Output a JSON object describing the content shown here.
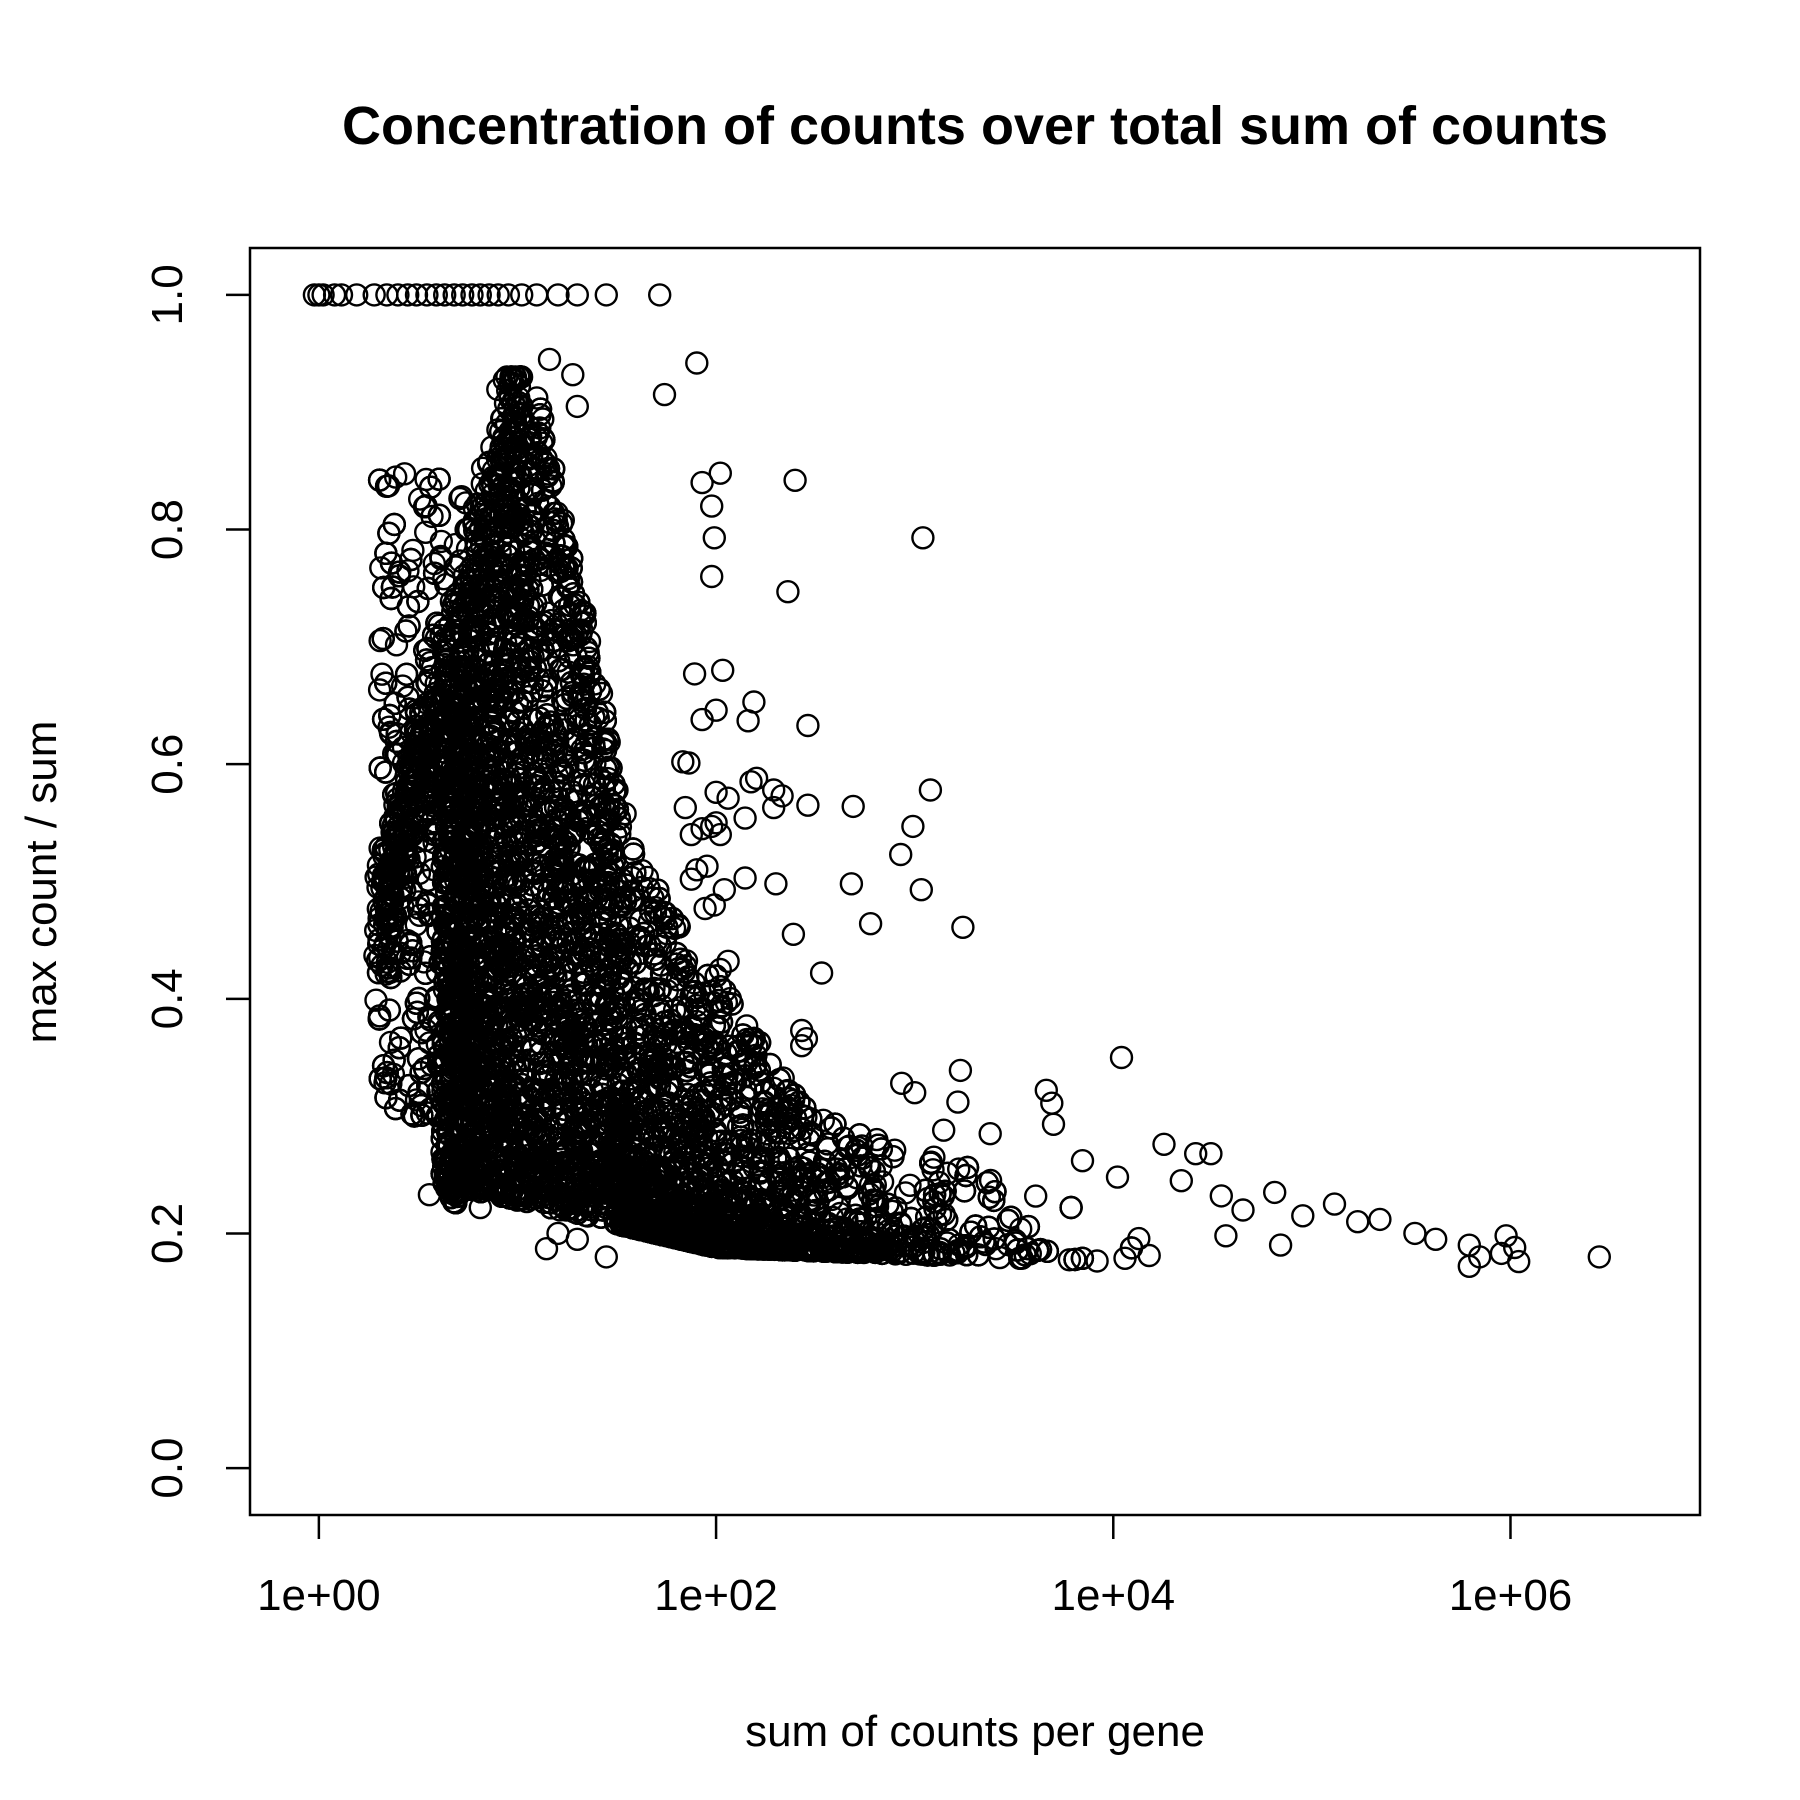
{
  "chart_data": {
    "type": "scatter",
    "title": "Concentration of counts over total sum of counts",
    "xlabel": "sum of counts per gene",
    "ylabel": "max count / sum",
    "x_scale": "log",
    "xlim": [
      0.45,
      9000000
    ],
    "ylim": [
      -0.04,
      1.04
    ],
    "x_ticks": [
      1,
      100,
      10000,
      1000000
    ],
    "x_tick_labels": [
      "1e+00",
      "1e+02",
      "1e+04",
      "1e+06"
    ],
    "y_ticks": [
      0,
      0.2,
      0.4,
      0.6,
      0.8,
      1.0
    ],
    "y_tick_labels": [
      "0.0",
      "0.2",
      "0.4",
      "0.6",
      "0.8",
      "1.0"
    ],
    "grid": false,
    "legend": "none",
    "marker": "open-circle",
    "color": "#000000",
    "points": [
      [
        0.95,
        1.0
      ],
      [
        1.0,
        1.0
      ],
      [
        1.05,
        1.0
      ],
      [
        1.2,
        1.0
      ],
      [
        1.3,
        1.0
      ],
      [
        1.55,
        1.0
      ],
      [
        1.9,
        1.0
      ],
      [
        2.2,
        1.0
      ],
      [
        2.5,
        1.0
      ],
      [
        2.8,
        1.0
      ],
      [
        3.1,
        1.0
      ],
      [
        3.5,
        1.0
      ],
      [
        3.9,
        1.0
      ],
      [
        4.3,
        1.0
      ],
      [
        4.8,
        1.0
      ],
      [
        5.3,
        1.0
      ],
      [
        5.9,
        1.0
      ],
      [
        6.5,
        1.0
      ],
      [
        7.2,
        1.0
      ],
      [
        8.0,
        1.0
      ],
      [
        9.0,
        1.0
      ],
      [
        10.5,
        1.0
      ],
      [
        12.5,
        1.0
      ],
      [
        16.0,
        1.0
      ],
      [
        20.0,
        1.0
      ],
      [
        28.0,
        1.0
      ],
      [
        52.0,
        1.0
      ],
      [
        14.5,
        0.945
      ],
      [
        19.0,
        0.932
      ],
      [
        80.0,
        0.942
      ],
      [
        55.0,
        0.915
      ],
      [
        20.0,
        0.905
      ],
      [
        85.0,
        0.84
      ],
      [
        105.0,
        0.848
      ],
      [
        250.0,
        0.842
      ],
      [
        95.0,
        0.82
      ],
      [
        98.0,
        0.793
      ],
      [
        95.0,
        0.76
      ],
      [
        1100.0,
        0.793
      ],
      [
        230.0,
        0.747
      ],
      [
        78.0,
        0.677
      ],
      [
        108.0,
        0.68
      ],
      [
        100.0,
        0.646
      ],
      [
        155.0,
        0.653
      ],
      [
        145.0,
        0.637
      ],
      [
        85.0,
        0.638
      ],
      [
        290.0,
        0.633
      ],
      [
        68.0,
        0.602
      ],
      [
        73.0,
        0.601
      ],
      [
        100.0,
        0.576
      ],
      [
        115.0,
        0.571
      ],
      [
        150.0,
        0.585
      ],
      [
        160.0,
        0.588
      ],
      [
        195.0,
        0.578
      ],
      [
        215.0,
        0.573
      ],
      [
        195.0,
        0.563
      ],
      [
        290.0,
        0.565
      ],
      [
        490.0,
        0.564
      ],
      [
        70.0,
        0.563
      ],
      [
        140.0,
        0.554
      ],
      [
        100.0,
        0.55
      ],
      [
        95.0,
        0.547
      ],
      [
        85.0,
        0.545
      ],
      [
        75.0,
        0.54
      ],
      [
        105.0,
        0.54
      ],
      [
        980.0,
        0.547
      ],
      [
        1200.0,
        0.578
      ],
      [
        850.0,
        0.523
      ],
      [
        80.0,
        0.51
      ],
      [
        90.0,
        0.513
      ],
      [
        75.0,
        0.502
      ],
      [
        140.0,
        0.503
      ],
      [
        200.0,
        0.498
      ],
      [
        480.0,
        0.498
      ],
      [
        1080.0,
        0.493
      ],
      [
        110.0,
        0.493
      ],
      [
        88.0,
        0.477
      ],
      [
        98.0,
        0.48
      ],
      [
        600.0,
        0.464
      ],
      [
        1750.0,
        0.461
      ],
      [
        245.0,
        0.455
      ],
      [
        340.0,
        0.422
      ],
      [
        115.0,
        0.432
      ],
      [
        105.0,
        0.425
      ],
      [
        270.0,
        0.373
      ],
      [
        270.0,
        0.36
      ],
      [
        285.0,
        0.366
      ],
      [
        4600.0,
        0.322
      ],
      [
        4900.0,
        0.311
      ],
      [
        1700.0,
        0.339
      ],
      [
        1650.0,
        0.312
      ],
      [
        860.0,
        0.328
      ],
      [
        1000.0,
        0.32
      ],
      [
        5000.0,
        0.293
      ],
      [
        11000.0,
        0.35
      ],
      [
        2400.0,
        0.285
      ],
      [
        18000.0,
        0.276
      ],
      [
        26000.0,
        0.268
      ],
      [
        31000.0,
        0.268
      ],
      [
        1400.0,
        0.288
      ],
      [
        1250.0,
        0.265
      ],
      [
        7000.0,
        0.262
      ],
      [
        10500.0,
        0.248
      ],
      [
        22000.0,
        0.245
      ],
      [
        35000.0,
        0.232
      ],
      [
        65000.0,
        0.235
      ],
      [
        130000.0,
        0.225
      ],
      [
        45000.0,
        0.22
      ],
      [
        90000.0,
        0.215
      ],
      [
        170000.0,
        0.21
      ],
      [
        220000.0,
        0.212
      ],
      [
        330000.0,
        0.2
      ],
      [
        420000.0,
        0.195
      ],
      [
        620000.0,
        0.19
      ],
      [
        950000.0,
        0.198
      ],
      [
        1050000.0,
        0.188
      ],
      [
        900000.0,
        0.183
      ],
      [
        1100000.0,
        0.176
      ],
      [
        620000.0,
        0.172
      ],
      [
        700000.0,
        0.18
      ],
      [
        2800000.0,
        0.18
      ],
      [
        14.0,
        0.187
      ],
      [
        16.0,
        0.2
      ],
      [
        28.0,
        0.18
      ],
      [
        20.0,
        0.195
      ],
      [
        35.0,
        0.21
      ],
      [
        3.6,
        0.233
      ],
      [
        6.5,
        0.222
      ],
      [
        4.5,
        0.258
      ],
      [
        5.5,
        0.245
      ],
      [
        7.5,
        0.24
      ]
    ],
    "dense_region": {
      "description_points_generated_by_script": true,
      "count": 9000
    }
  }
}
